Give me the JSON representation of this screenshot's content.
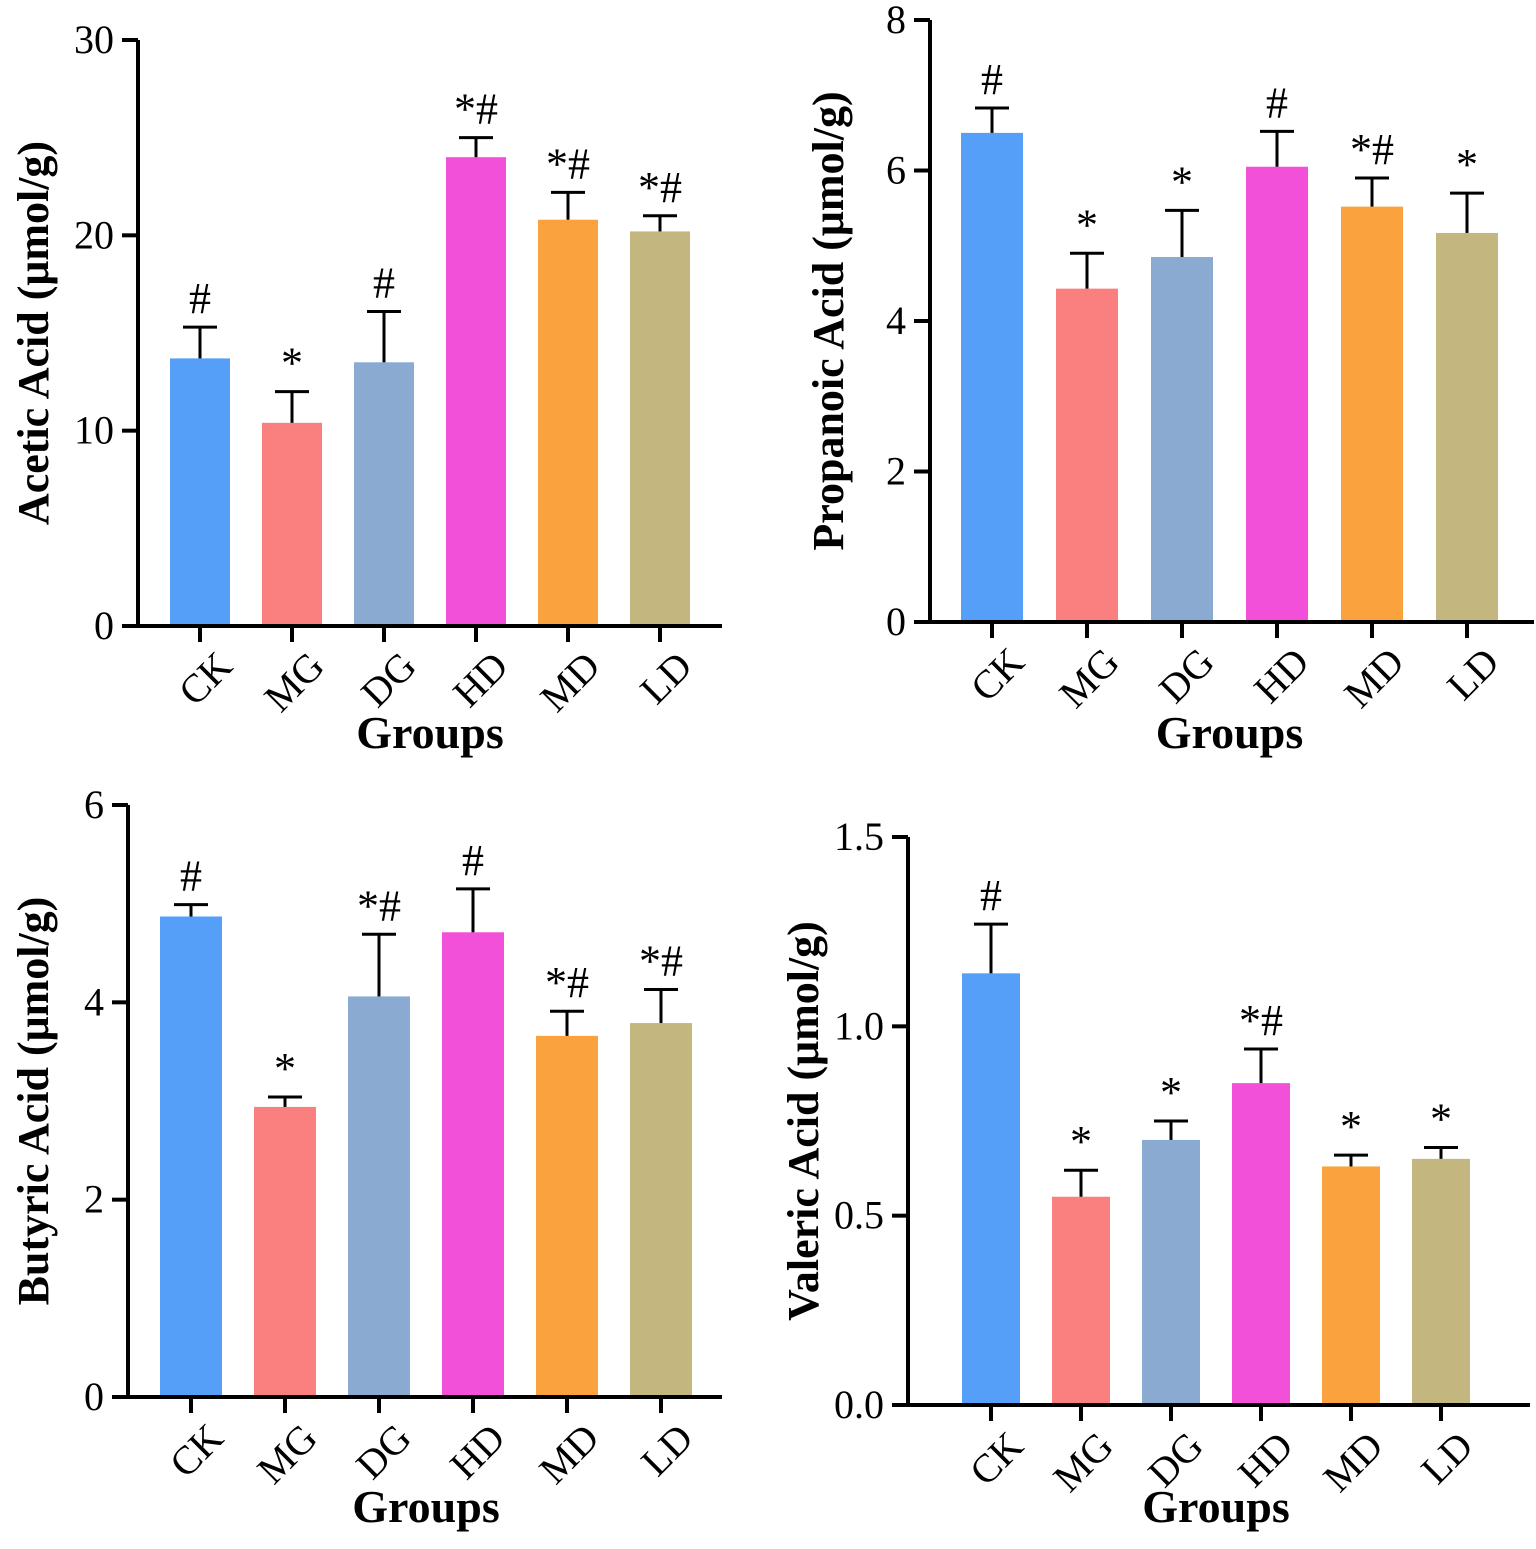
{
  "chart_data": [
    {
      "type": "bar",
      "title": "",
      "xlabel": "Groups",
      "ylabel": "Acetic Acid (μmol/g)",
      "categories": [
        "CK",
        "MG",
        "DG",
        "HD",
        "MD",
        "LD"
      ],
      "values": [
        13.7,
        10.4,
        13.5,
        24.0,
        20.8,
        20.2
      ],
      "errors": [
        1.6,
        1.6,
        2.6,
        1.0,
        1.4,
        0.8
      ],
      "significance": [
        "#",
        "*",
        "#",
        "*#",
        "*#",
        "*#"
      ],
      "ylim": [
        0,
        30
      ],
      "yticks": [
        0,
        10,
        20,
        30
      ],
      "ytick_labels": [
        "0",
        "10",
        "20",
        "30"
      ]
    },
    {
      "type": "bar",
      "title": "",
      "xlabel": "Groups",
      "ylabel": "Propanoic Acid (μmol/g)",
      "categories": [
        "CK",
        "MG",
        "DG",
        "HD",
        "MD",
        "LD"
      ],
      "values": [
        6.5,
        4.43,
        4.85,
        6.05,
        5.52,
        5.17
      ],
      "errors": [
        0.33,
        0.47,
        0.62,
        0.47,
        0.38,
        0.53
      ],
      "significance": [
        "#",
        "*",
        "*",
        "#",
        "*#",
        "*"
      ],
      "ylim": [
        0,
        8
      ],
      "yticks": [
        0,
        2,
        4,
        6,
        8
      ],
      "ytick_labels": [
        "0",
        "2",
        "4",
        "6",
        "8"
      ]
    },
    {
      "type": "bar",
      "title": "",
      "xlabel": "Groups",
      "ylabel": "Butyric Acid (μmol/g)",
      "categories": [
        "CK",
        "MG",
        "DG",
        "HD",
        "MD",
        "LD"
      ],
      "values": [
        4.87,
        2.94,
        4.06,
        4.71,
        3.66,
        3.79
      ],
      "errors": [
        0.12,
        0.1,
        0.63,
        0.44,
        0.25,
        0.34
      ],
      "significance": [
        "#",
        "*",
        "*#",
        "#",
        "*#",
        "*#"
      ],
      "ylim": [
        0,
        6
      ],
      "yticks": [
        0,
        2,
        4,
        6
      ],
      "ytick_labels": [
        "0",
        "2",
        "4",
        "6"
      ]
    },
    {
      "type": "bar",
      "title": "",
      "xlabel": "Groups",
      "ylabel": "Valeric Acid (μmol/g)",
      "categories": [
        "CK",
        "MG",
        "DG",
        "HD",
        "MD",
        "LD"
      ],
      "values": [
        1.14,
        0.55,
        0.7,
        0.85,
        0.63,
        0.65
      ],
      "errors": [
        0.13,
        0.07,
        0.05,
        0.09,
        0.03,
        0.03
      ],
      "significance": [
        "#",
        "*",
        "*",
        "*#",
        "*",
        "*"
      ],
      "ylim": [
        0,
        1.5
      ],
      "yticks": [
        0,
        0.5,
        1.0,
        1.5
      ],
      "ytick_labels": [
        "0.0",
        "0.5",
        "1.0",
        "1.5"
      ]
    }
  ],
  "colors": [
    "#569ff9",
    "#fa8080",
    "#8aaad2",
    "#f250d9",
    "#f9a23e",
    "#c3b67f"
  ]
}
